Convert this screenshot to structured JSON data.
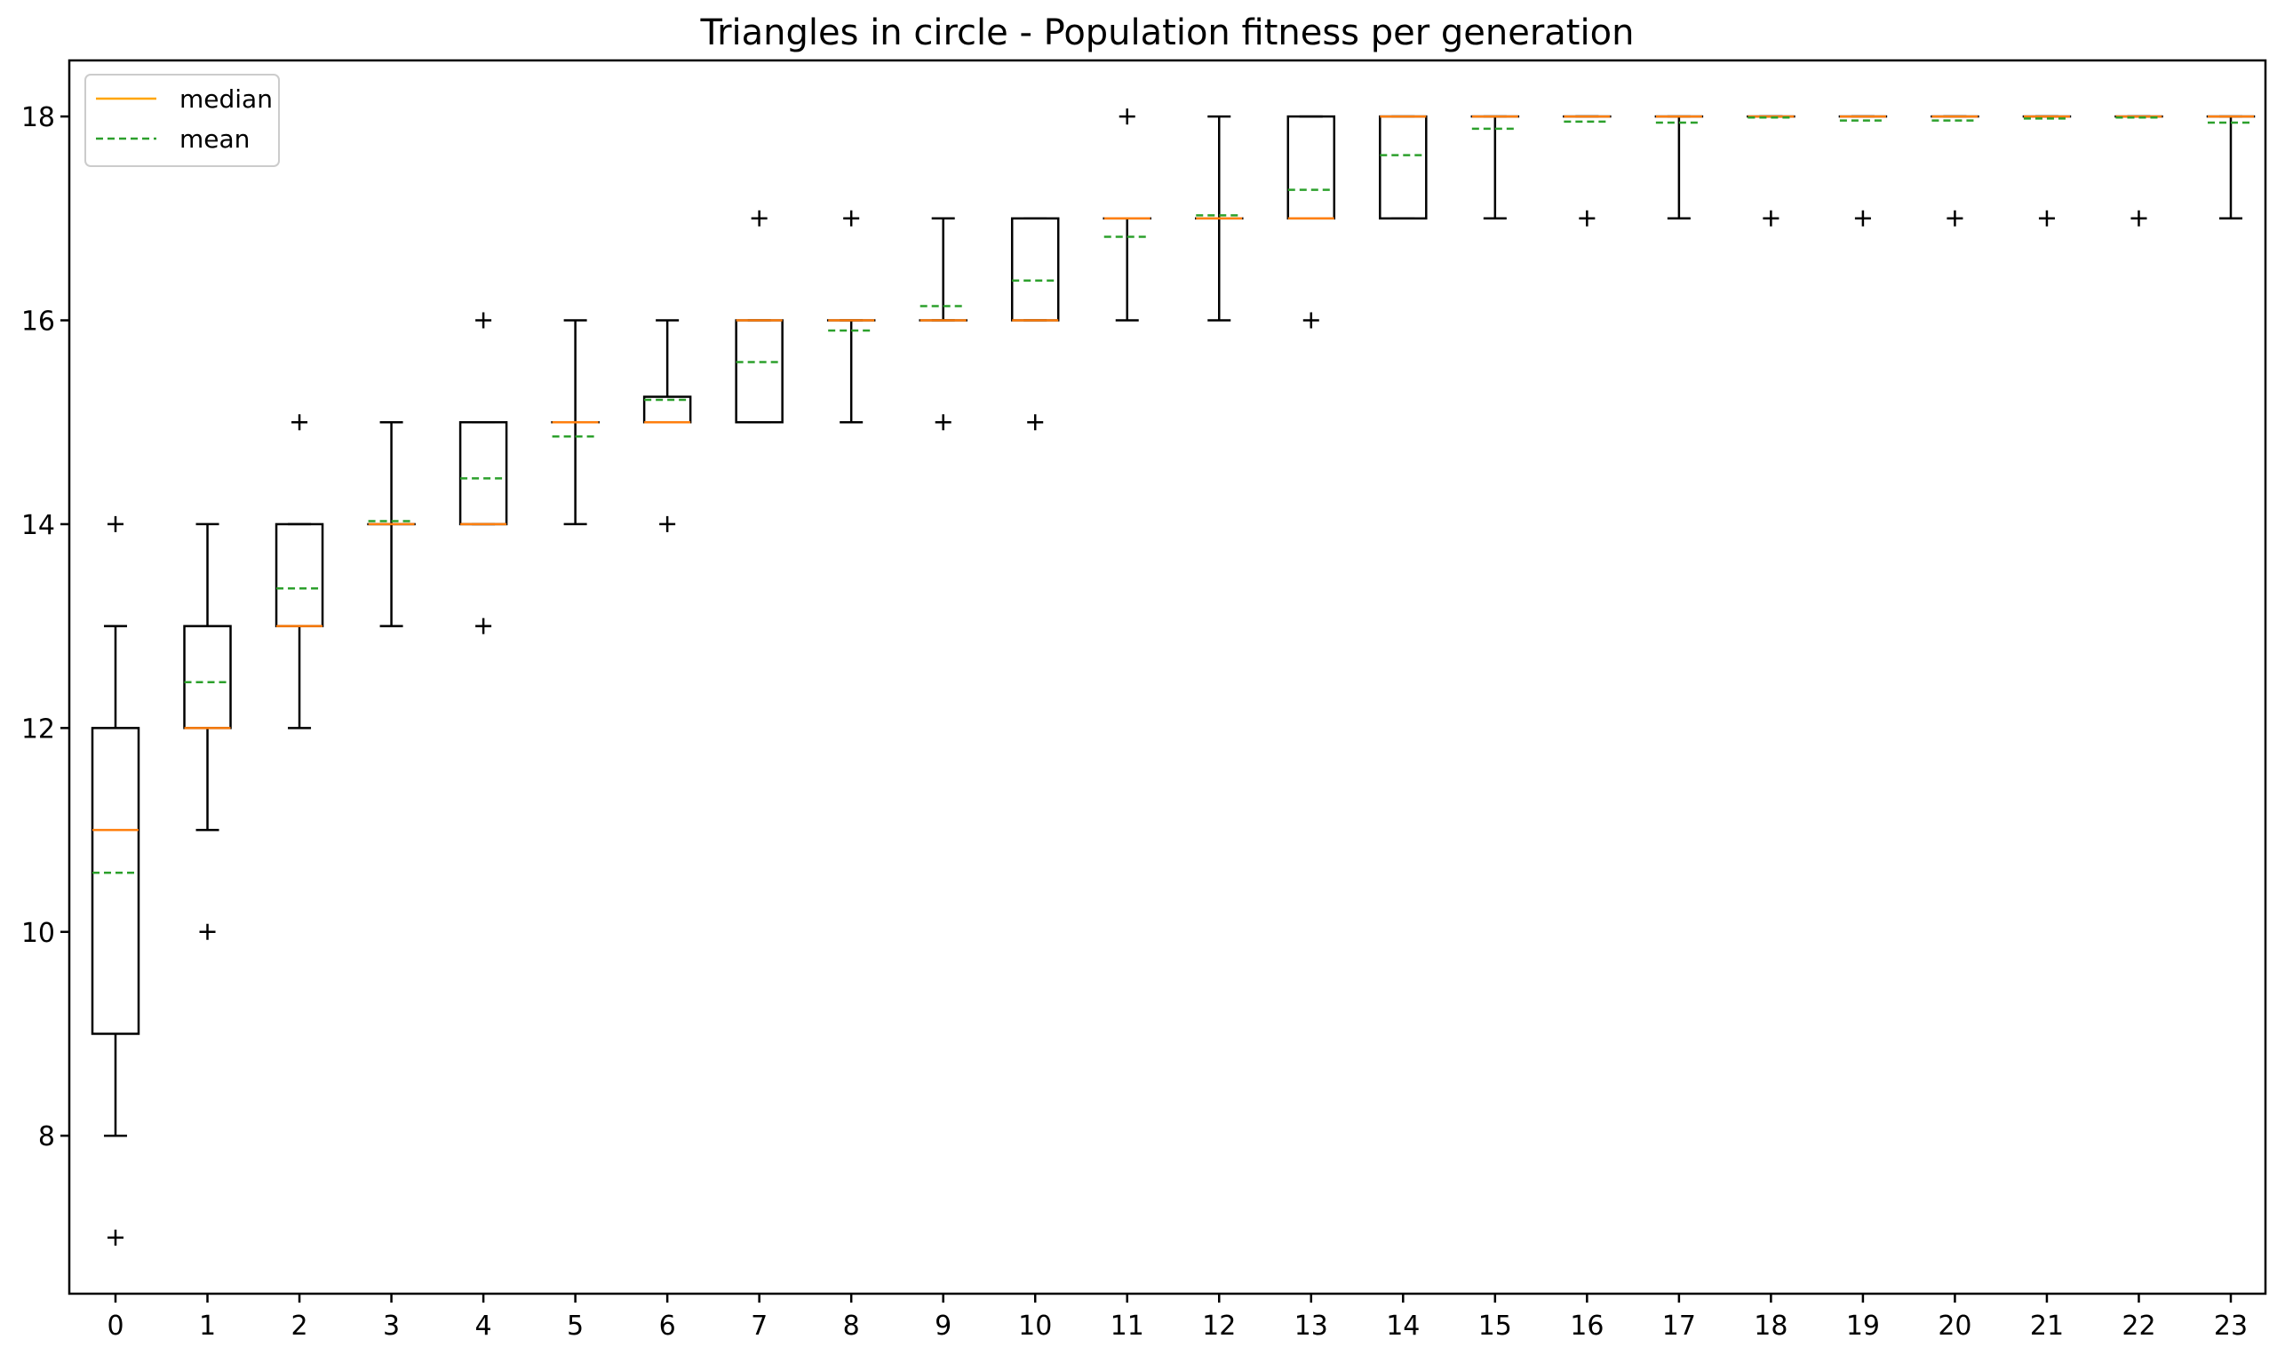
{
  "chart_data": {
    "type": "boxplot",
    "title": "Triangles in circle - Population fitness per generation",
    "xlabel": "",
    "ylabel": "",
    "ylim": [
      6.45,
      18.55
    ],
    "yticks": [
      8,
      10,
      12,
      14,
      16,
      18
    ],
    "grid": false,
    "legend": {
      "placement": "top-left",
      "entries": [
        {
          "label": "median",
          "style": "solid",
          "color": "#ffa500"
        },
        {
          "label": "mean",
          "style": "dashed",
          "color": "#2ca02c"
        }
      ]
    },
    "colors": {
      "box": "#000000",
      "median": "#ff7f0e",
      "mean": "#2ca02c",
      "legend_median": "#ffa500"
    },
    "categories": [
      "0",
      "1",
      "2",
      "3",
      "4",
      "5",
      "6",
      "7",
      "8",
      "9",
      "10",
      "11",
      "12",
      "13",
      "14",
      "15",
      "16",
      "17",
      "18",
      "19",
      "20",
      "21",
      "22",
      "23"
    ],
    "boxes": [
      {
        "q1": 9,
        "median": 11,
        "q3": 12,
        "mean": 10.58,
        "whisker_low": 8,
        "whisker_high": 13,
        "fliers": [
          14,
          7
        ]
      },
      {
        "q1": 12,
        "median": 12,
        "q3": 13,
        "mean": 12.45,
        "whisker_low": 11,
        "whisker_high": 14,
        "fliers": [
          10
        ]
      },
      {
        "q1": 13,
        "median": 13,
        "q3": 14,
        "mean": 13.37,
        "whisker_low": 12,
        "whisker_high": 14,
        "fliers": [
          15
        ]
      },
      {
        "q1": 14,
        "median": 14,
        "q3": 14,
        "mean": 14.03,
        "whisker_low": 13,
        "whisker_high": 15,
        "fliers": []
      },
      {
        "q1": 14,
        "median": 14,
        "q3": 15,
        "mean": 14.45,
        "whisker_low": 14,
        "whisker_high": 15,
        "fliers": [
          16,
          13
        ]
      },
      {
        "q1": 15,
        "median": 15,
        "q3": 15,
        "mean": 14.86,
        "whisker_low": 14,
        "whisker_high": 16,
        "fliers": []
      },
      {
        "q1": 15,
        "median": 15,
        "q3": 15.25,
        "mean": 15.22,
        "whisker_low": 15,
        "whisker_high": 16,
        "fliers": [
          14
        ]
      },
      {
        "q1": 15,
        "median": 16,
        "q3": 16,
        "mean": 15.59,
        "whisker_low": 15,
        "whisker_high": 16,
        "fliers": [
          17
        ]
      },
      {
        "q1": 16,
        "median": 16,
        "q3": 16,
        "mean": 15.9,
        "whisker_low": 15,
        "whisker_high": 16,
        "fliers": [
          17
        ]
      },
      {
        "q1": 16,
        "median": 16,
        "q3": 16,
        "mean": 16.14,
        "whisker_low": 16,
        "whisker_high": 17,
        "fliers": [
          15
        ]
      },
      {
        "q1": 16,
        "median": 16,
        "q3": 17,
        "mean": 16.39,
        "whisker_low": 16,
        "whisker_high": 17,
        "fliers": [
          15
        ]
      },
      {
        "q1": 17,
        "median": 17,
        "q3": 17,
        "mean": 16.82,
        "whisker_low": 16,
        "whisker_high": 17,
        "fliers": [
          18
        ]
      },
      {
        "q1": 17,
        "median": 17,
        "q3": 17,
        "mean": 17.03,
        "whisker_low": 16,
        "whisker_high": 18,
        "fliers": []
      },
      {
        "q1": 17,
        "median": 17,
        "q3": 18,
        "mean": 17.28,
        "whisker_low": 17,
        "whisker_high": 18,
        "fliers": [
          16
        ]
      },
      {
        "q1": 17,
        "median": 18,
        "q3": 18,
        "mean": 17.62,
        "whisker_low": 17,
        "whisker_high": 18,
        "fliers": []
      },
      {
        "q1": 18,
        "median": 18,
        "q3": 18,
        "mean": 17.88,
        "whisker_low": 17,
        "whisker_high": 18,
        "fliers": []
      },
      {
        "q1": 18,
        "median": 18,
        "q3": 18,
        "mean": 17.95,
        "whisker_low": 18,
        "whisker_high": 18,
        "fliers": [
          17
        ]
      },
      {
        "q1": 18,
        "median": 18,
        "q3": 18,
        "mean": 17.94,
        "whisker_low": 17,
        "whisker_high": 18,
        "fliers": []
      },
      {
        "q1": 18,
        "median": 18,
        "q3": 18,
        "mean": 17.99,
        "whisker_low": 18,
        "whisker_high": 18,
        "fliers": [
          17
        ]
      },
      {
        "q1": 18,
        "median": 18,
        "q3": 18,
        "mean": 17.96,
        "whisker_low": 18,
        "whisker_high": 18,
        "fliers": [
          17
        ]
      },
      {
        "q1": 18,
        "median": 18,
        "q3": 18,
        "mean": 17.96,
        "whisker_low": 18,
        "whisker_high": 18,
        "fliers": [
          17
        ]
      },
      {
        "q1": 18,
        "median": 18,
        "q3": 18,
        "mean": 17.98,
        "whisker_low": 18,
        "whisker_high": 18,
        "fliers": [
          17
        ]
      },
      {
        "q1": 18,
        "median": 18,
        "q3": 18,
        "mean": 17.99,
        "whisker_low": 18,
        "whisker_high": 18,
        "fliers": [
          17
        ]
      },
      {
        "q1": 18,
        "median": 18,
        "q3": 18,
        "mean": 17.94,
        "whisker_low": 17,
        "whisker_high": 18,
        "fliers": []
      }
    ]
  }
}
